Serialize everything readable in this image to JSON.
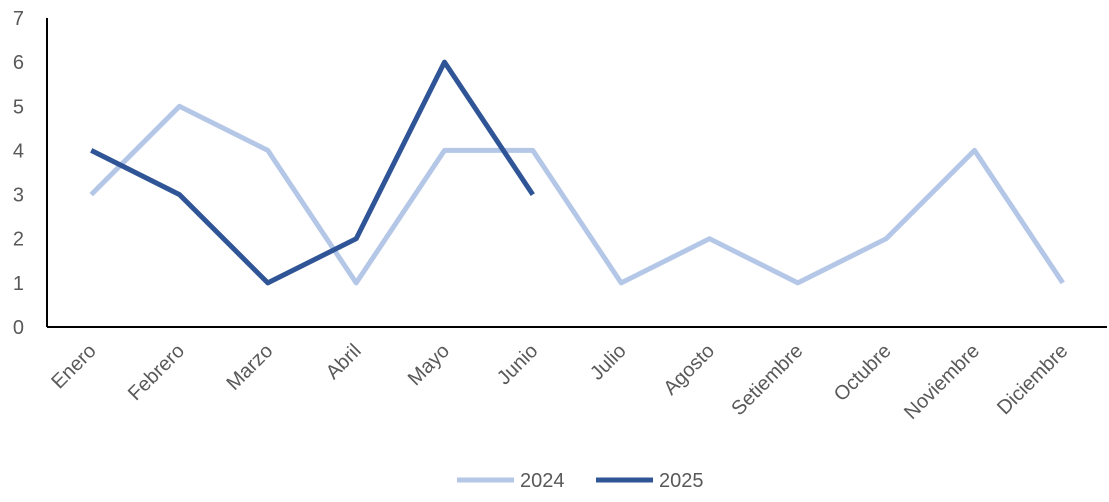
{
  "chart_data": {
    "type": "line",
    "title": "",
    "xlabel": "",
    "ylabel": "",
    "categories": [
      "Enero",
      "Febrero",
      "Marzo",
      "Abril",
      "Mayo",
      "Junio",
      "Julio",
      "Agosto",
      "Setiembre",
      "Octubre",
      "Noviembre",
      "Diciembre"
    ],
    "ylim": [
      0,
      7
    ],
    "yticks": [
      "0",
      "1",
      "2",
      "3",
      "4",
      "5",
      "6",
      "7"
    ],
    "grid": false,
    "legend_position": "bottom",
    "series": [
      {
        "name": "2024",
        "color": "#B4C7E7",
        "values": [
          3,
          5,
          4,
          1,
          4,
          4,
          1,
          2,
          1,
          2,
          4,
          1
        ]
      },
      {
        "name": "2025",
        "color": "#2F5597",
        "values": [
          4,
          3,
          1,
          2,
          6,
          3,
          null,
          null,
          null,
          null,
          null,
          null
        ]
      }
    ]
  }
}
